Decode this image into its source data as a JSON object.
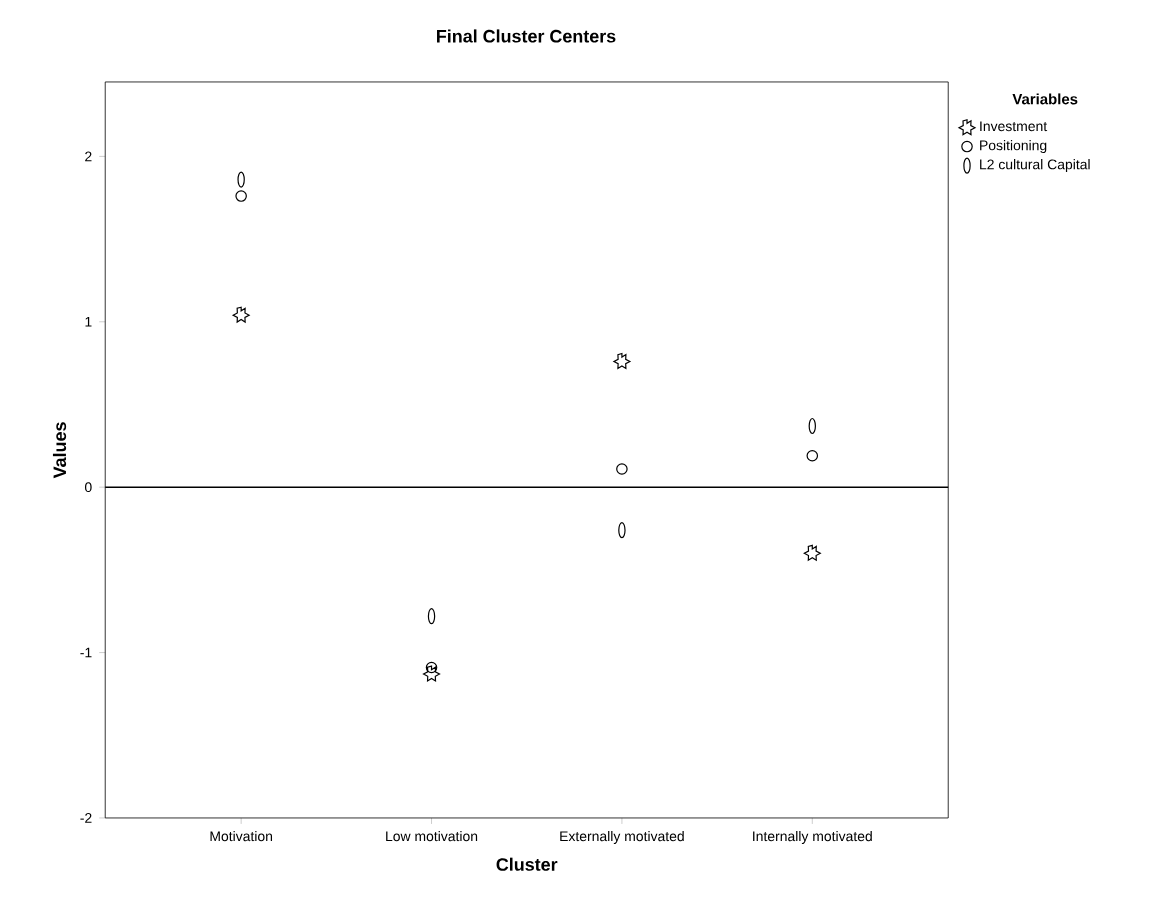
{
  "chart_data": {
    "type": "scatter",
    "title": "Final Cluster Centers",
    "xlabel": "Cluster",
    "ylabel": "Values",
    "legend_title": "Variables",
    "categories": [
      "Motivation",
      "Low motivation",
      "Externally motivated",
      "Internally  motivated"
    ],
    "series": [
      {
        "name": "Investment",
        "color": "#000000",
        "marker": "star",
        "values": [
          1.04,
          -1.13,
          0.76,
          -0.4
        ]
      },
      {
        "name": "Positioning",
        "color": "#000000",
        "marker": "circle",
        "values": [
          1.76,
          -1.09,
          0.11,
          0.19
        ]
      },
      {
        "name": "L2 cultural Capital",
        "color": "#000000",
        "values": [
          1.86,
          -0.78,
          -0.26,
          0.37
        ]
      }
    ],
    "ylim": [
      -2,
      2.45
    ],
    "yticks": [
      -2,
      -1,
      0,
      1,
      2
    ],
    "ref_lines": [
      {
        "axis": "y",
        "value": 0,
        "color": "#000000",
        "line_style": "solid"
      }
    ],
    "grid": false,
    "legend": "top right"
  }
}
